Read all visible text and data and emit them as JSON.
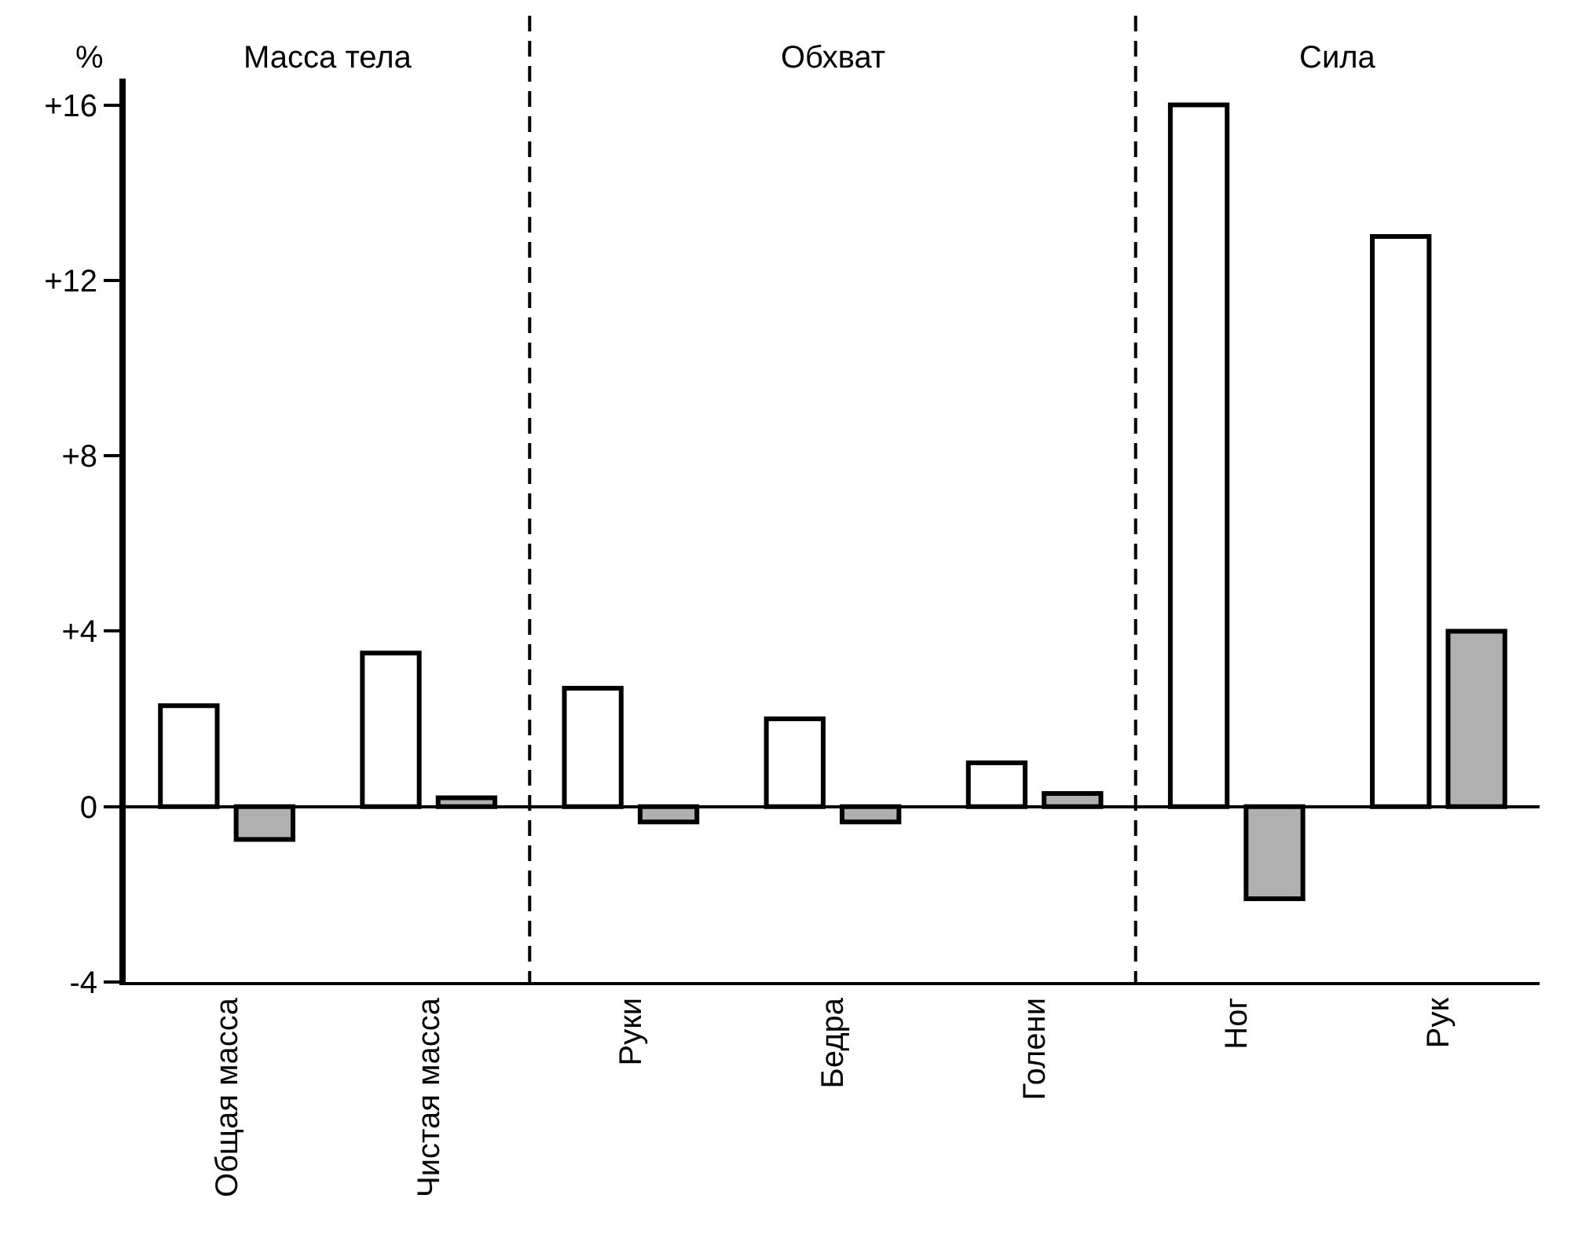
{
  "chart_data": {
    "type": "bar",
    "ylabel": "%",
    "categories": [
      "Общая масса",
      "Чистая масса",
      "Руки",
      "Бедра",
      "Голени",
      "Ног",
      "Рук"
    ],
    "series": [
      {
        "color": "#ffffff",
        "values": [
          2.3,
          3.5,
          2.7,
          2.0,
          1.0,
          16,
          13
        ]
      },
      {
        "color": "#b0b0b0",
        "values": [
          -0.75,
          0.2,
          -0.35,
          -0.35,
          0.3,
          -2.1,
          4.0
        ]
      }
    ],
    "ylim": [
      -4,
      16.6
    ],
    "yticks": [
      {
        "value": -4,
        "label": "-4"
      },
      0,
      {
        "value": 4,
        "label": "+4"
      },
      {
        "value": 8,
        "label": "+8"
      },
      {
        "value": 12,
        "label": "+12"
      },
      {
        "value": 16,
        "label": "+16"
      }
    ],
    "annotations": [
      "Масса тела",
      "Обхват",
      "Сила"
    ],
    "grid": false
  }
}
